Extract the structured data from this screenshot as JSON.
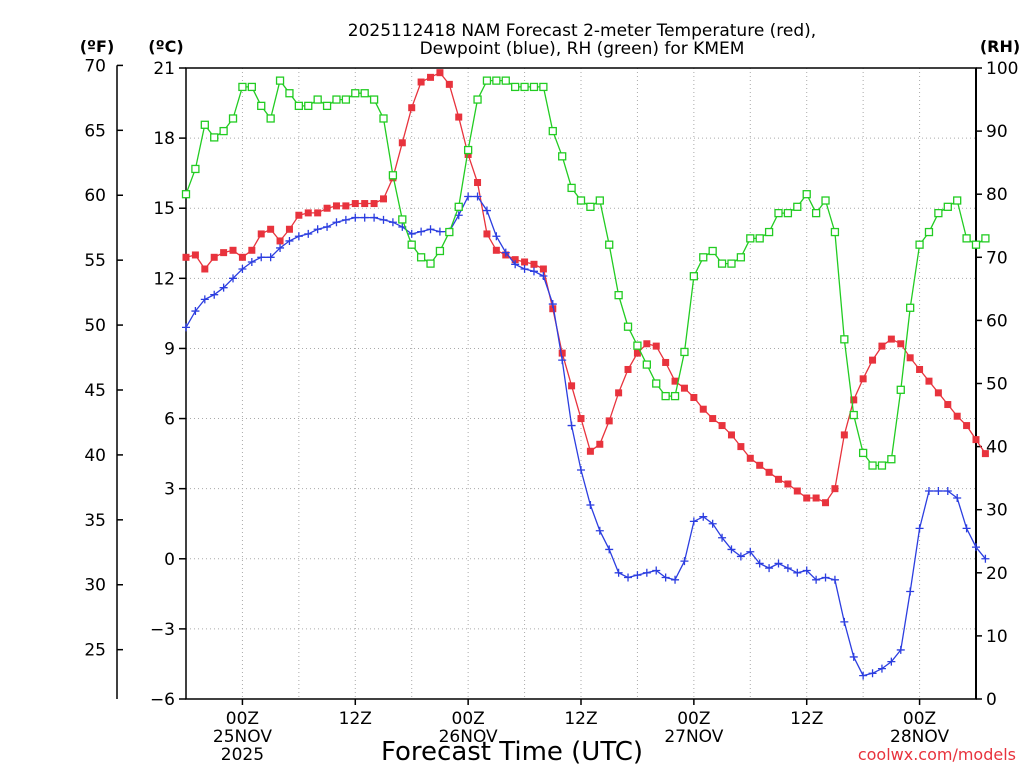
{
  "colors": {
    "temperature": "#e8333d",
    "dewpoint": "#2c3ee0",
    "rh": "#22cc22",
    "grid": "#aaaaaa",
    "credit": "#e8333d"
  },
  "chart_data": {
    "type": "line",
    "title_line1": "2025112418 NAM Forecast 2-meter Temperature (red),",
    "title_line2": "Dewpoint (blue), RH (green) for KMEM",
    "xlabel": "Forecast Time (UTC)",
    "credit": "coolwx.com/models",
    "left_unit_f": "(ºF)",
    "left_unit_c": "(ºC)",
    "right_unit": "(RH)",
    "x_hours_start": -6,
    "x_hours_end": 78,
    "y_c_lim": [
      -6,
      21
    ],
    "y_rh_lim": [
      0,
      100
    ],
    "c_ticks": [
      "21",
      "18",
      "15",
      "12",
      "9",
      "6",
      "3",
      "0",
      "−3",
      "−6"
    ],
    "f_ticks": [
      "70",
      "65",
      "60",
      "55",
      "50",
      "45",
      "40",
      "35",
      "30",
      "25"
    ],
    "rh_ticks": [
      "100",
      "90",
      "80",
      "70",
      "60",
      "50",
      "40",
      "30",
      "20",
      "10",
      "0"
    ],
    "x_tick_hours": [
      0,
      12,
      24,
      36,
      48,
      60,
      72
    ],
    "x_tick_labels": [
      {
        "time": "00Z",
        "date": "25NOV",
        "year": "2025"
      },
      {
        "time": "12Z",
        "date": "",
        "year": ""
      },
      {
        "time": "00Z",
        "date": "26NOV",
        "year": ""
      },
      {
        "time": "12Z",
        "date": "",
        "year": ""
      },
      {
        "time": "00Z",
        "date": "27NOV",
        "year": ""
      },
      {
        "time": "12Z",
        "date": "",
        "year": ""
      },
      {
        "time": "00Z",
        "date": "28NOV",
        "year": ""
      }
    ],
    "series": [
      {
        "name": "2-meter Temperature",
        "unit": "C",
        "color": "#e8333d",
        "marker": "filled-square",
        "values": [
          12.9,
          13.0,
          12.4,
          12.9,
          13.1,
          13.2,
          12.9,
          13.2,
          13.9,
          14.1,
          13.6,
          14.1,
          14.7,
          14.8,
          14.8,
          15.0,
          15.1,
          15.1,
          15.2,
          15.2,
          15.2,
          15.4,
          16.3,
          17.8,
          19.3,
          20.4,
          20.6,
          20.8,
          20.3,
          18.9,
          17.3,
          16.1,
          13.9,
          13.2,
          13.0,
          12.8,
          12.7,
          12.6,
          12.4,
          10.7,
          8.8,
          7.4,
          6.0,
          4.6,
          4.9,
          5.9,
          7.1,
          8.1,
          8.8,
          9.2,
          9.1,
          8.4,
          7.6,
          7.3,
          6.9,
          6.4,
          6.0,
          5.7,
          5.3,
          4.8,
          4.3,
          4.0,
          3.7,
          3.4,
          3.2,
          2.9,
          2.6,
          2.6,
          2.4,
          3.0,
          5.3,
          6.8,
          7.7,
          8.5,
          9.1,
          9.4,
          9.2,
          8.6,
          8.1,
          7.6,
          7.1,
          6.6,
          6.1,
          5.7,
          5.1,
          4.5
        ]
      },
      {
        "name": "Dewpoint",
        "unit": "C",
        "color": "#2c3ee0",
        "marker": "plus",
        "values": [
          9.9,
          10.6,
          11.1,
          11.3,
          11.6,
          12.0,
          12.4,
          12.7,
          12.9,
          12.9,
          13.3,
          13.6,
          13.8,
          13.9,
          14.1,
          14.2,
          14.4,
          14.5,
          14.6,
          14.6,
          14.6,
          14.5,
          14.4,
          14.2,
          13.9,
          14.0,
          14.1,
          14.0,
          14.0,
          14.7,
          15.5,
          15.5,
          14.9,
          13.8,
          13.1,
          12.6,
          12.4,
          12.3,
          12.1,
          10.9,
          8.5,
          5.7,
          3.8,
          2.3,
          1.2,
          0.4,
          -0.6,
          -0.8,
          -0.7,
          -0.6,
          -0.5,
          -0.8,
          -0.9,
          -0.1,
          1.6,
          1.8,
          1.5,
          0.9,
          0.4,
          0.1,
          0.3,
          -0.2,
          -0.4,
          -0.2,
          -0.4,
          -0.6,
          -0.5,
          -0.9,
          -0.8,
          -0.9,
          -2.7,
          -4.2,
          -5.0,
          -4.9,
          -4.7,
          -4.4,
          -3.9,
          -1.4,
          1.3,
          2.9,
          2.9,
          2.9,
          2.6,
          1.3,
          0.5,
          0.0
        ]
      },
      {
        "name": "RH",
        "unit": "%",
        "color": "#22cc22",
        "marker": "open-square",
        "values": [
          80,
          84,
          91,
          89,
          90,
          92,
          97,
          97,
          94,
          92,
          98,
          96,
          94,
          94,
          95,
          94,
          95,
          95,
          96,
          96,
          95,
          92,
          83,
          76,
          72,
          70,
          69,
          71,
          74,
          78,
          87,
          95,
          98,
          98,
          98,
          97,
          97,
          97,
          97,
          90,
          86,
          81,
          79,
          78,
          79,
          72,
          64,
          59,
          56,
          53,
          50,
          48,
          48,
          55,
          67,
          70,
          71,
          69,
          69,
          70,
          73,
          73,
          74,
          77,
          77,
          78,
          80,
          77,
          79,
          74,
          57,
          45,
          39,
          37,
          37,
          38,
          49,
          62,
          72,
          74,
          77,
          78,
          79,
          73,
          72,
          73
        ]
      }
    ]
  }
}
